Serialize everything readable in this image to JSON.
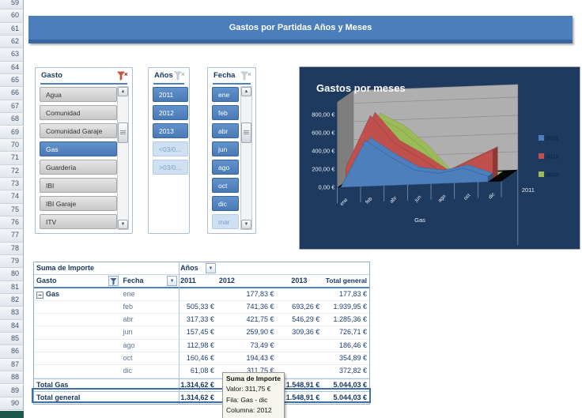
{
  "banner": {
    "title": "Gastos por Partidas Años y Meses"
  },
  "row_numbers": [
    59,
    60,
    61,
    62,
    63,
    64,
    65,
    66,
    67,
    68,
    69,
    70,
    71,
    72,
    73,
    74,
    75,
    76,
    77,
    78,
    79,
    80,
    81,
    82,
    83,
    84,
    85,
    86,
    87,
    88,
    89,
    90
  ],
  "colors": {
    "accent_blue": "#4F81BD",
    "banner_blue": "#4D7EBC",
    "chart_background": "#1E3A5E",
    "corner_teal": "#1D584C",
    "series_2011": "#4C7FBC",
    "series_2012": "#C0504D",
    "series_2013": "#9BBB59"
  },
  "slicers": [
    {
      "title": "Gasto",
      "filter_active": true,
      "has_scrollbar": true,
      "items": [
        {
          "label": "Agua",
          "state": "unselected"
        },
        {
          "label": "Comunidad",
          "state": "unselected"
        },
        {
          "label": "Comunidad Garaje",
          "state": "unselected"
        },
        {
          "label": "Gas",
          "state": "selected"
        },
        {
          "label": "Guardería",
          "state": "unselected"
        },
        {
          "label": "IBI",
          "state": "unselected"
        },
        {
          "label": "IBI Garaje",
          "state": "unselected"
        },
        {
          "label": "ITV",
          "state": "unselected"
        }
      ]
    },
    {
      "title": "Años",
      "filter_active": false,
      "has_scrollbar": false,
      "items": [
        {
          "label": "2011",
          "state": "selected"
        },
        {
          "label": "2012",
          "state": "selected"
        },
        {
          "label": "2013",
          "state": "selected"
        },
        {
          "label": "<03/0...",
          "state": "nodata"
        },
        {
          "label": ">03/0...",
          "state": "nodata"
        }
      ]
    },
    {
      "title": "Fecha",
      "filter_active": false,
      "has_scrollbar": true,
      "items": [
        {
          "label": "ene",
          "state": "selected"
        },
        {
          "label": "feb",
          "state": "selected"
        },
        {
          "label": "abr",
          "state": "selected"
        },
        {
          "label": "jun",
          "state": "selected"
        },
        {
          "label": "ago",
          "state": "selected"
        },
        {
          "label": "oct",
          "state": "selected"
        },
        {
          "label": "dic",
          "state": "selected"
        },
        {
          "label": "mar",
          "state": "nodata"
        }
      ]
    }
  ],
  "chart_data": {
    "type": "area",
    "view": "3d",
    "title": "Gastos por meses",
    "categories": [
      "ene",
      "feb",
      "abr",
      "jun",
      "ago",
      "oct",
      "dic"
    ],
    "series": [
      {
        "name": "2011",
        "color": "#4C7FBC",
        "dark": "#2F5685",
        "values": [
          0,
          505.33,
          317.33,
          157.45,
          112.98,
          160.46,
          61.08
        ]
      },
      {
        "name": "2012",
        "color": "#C0504D",
        "dark": "#8C3836",
        "values": [
          177.83,
          741.36,
          421.75,
          259.9,
          73.49,
          194.43,
          311.75
        ]
      },
      {
        "name": "2013",
        "color": "#9BBB59",
        "dark": "#71913B",
        "values": [
          0,
          693.26,
          546.29,
          309.36,
          0,
          0,
          0
        ]
      }
    ],
    "ylim": [
      0,
      800
    ],
    "ytick_labels": [
      "0,00 €",
      "200,00 €",
      "400,00 €",
      "600,00 €",
      "800,00 €"
    ],
    "xlabel": "Gas",
    "depth_axis_label": "2011",
    "legend_position": "right",
    "grid": true
  },
  "pivot": {
    "corner_label": "Suma de Importe",
    "col_field": "Años",
    "row_field_1": "Gasto",
    "row_field_2": "Fecha",
    "col_headers": [
      "2011",
      "2012",
      "2013",
      "Total general"
    ],
    "group_label": "Gas",
    "rows": [
      {
        "fecha": "ene",
        "vals": [
          "",
          "177,83 €",
          "",
          "177,83 €"
        ]
      },
      {
        "fecha": "feb",
        "vals": [
          "505,33 €",
          "741,36 €",
          "693,26 €",
          "1.939,95 €"
        ]
      },
      {
        "fecha": "abr",
        "vals": [
          "317,33 €",
          "421,75 €",
          "546,29 €",
          "1.285,36 €"
        ]
      },
      {
        "fecha": "jun",
        "vals": [
          "157,45 €",
          "259,90 €",
          "309,36 €",
          "726,71 €"
        ]
      },
      {
        "fecha": "ago",
        "vals": [
          "112,98 €",
          "73,49 €",
          "",
          "186,46 €"
        ]
      },
      {
        "fecha": "oct",
        "vals": [
          "160,46 €",
          "194,43 €",
          "",
          "354,89 €"
        ]
      },
      {
        "fecha": "dic",
        "vals": [
          "61,08 €",
          "311,75 €",
          "",
          "372,82 €"
        ]
      }
    ],
    "totals": [
      {
        "label": "Total Gas",
        "vals": [
          "1.314,62 €",
          "",
          "1.548,91 €",
          "5.044,03 €"
        ]
      },
      {
        "label": "Total general",
        "vals": [
          "1.314,62 €",
          "",
          "1.548,91 €",
          "5.044,03 €"
        ],
        "selected": true
      }
    ]
  },
  "tooltip": {
    "title": "Suma de Importe",
    "lines": [
      "Valor: 311,75 €",
      "Fila: Gas - dic",
      "Columna: 2012"
    ]
  }
}
